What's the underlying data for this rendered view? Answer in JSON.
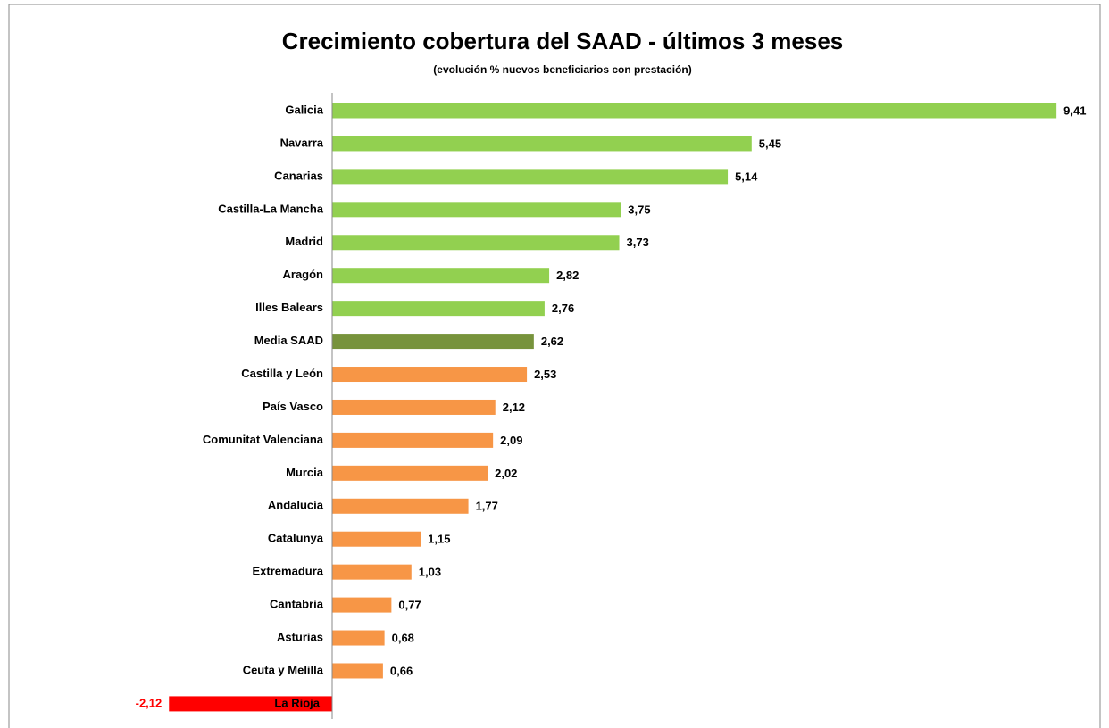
{
  "chart_data": {
    "type": "bar",
    "orientation": "horizontal",
    "title": "Crecimiento cobertura del SAAD - últimos 3 meses",
    "subtitle": "(evolución % nuevos beneficiarios con prestación)",
    "categories": [
      "Galicia",
      "Navarra",
      "Canarias",
      "Castilla-La Mancha",
      "Madrid",
      "Aragón",
      "Illes Balears",
      "Media SAAD",
      "Castilla y León",
      "País Vasco",
      "Comunitat Valenciana",
      "Murcia",
      "Andalucía",
      "Catalunya",
      "Extremadura",
      "Cantabria",
      "Asturias",
      "Ceuta y Melilla",
      "La Rioja"
    ],
    "values": [
      9.41,
      5.45,
      5.14,
      3.75,
      3.73,
      2.82,
      2.76,
      2.62,
      2.53,
      2.12,
      2.09,
      2.02,
      1.77,
      1.15,
      1.03,
      0.77,
      0.68,
      0.66,
      -2.12
    ],
    "value_labels": [
      "9,41",
      "5,45",
      "5,14",
      "3,75",
      "3,73",
      "2,82",
      "2,76",
      "2,62",
      "2,53",
      "2,12",
      "2,09",
      "2,02",
      "1,77",
      "1,15",
      "1,03",
      "0,77",
      "0,68",
      "0,66",
      "-2,12"
    ],
    "colors": [
      "#92d050",
      "#92d050",
      "#92d050",
      "#92d050",
      "#92d050",
      "#92d050",
      "#92d050",
      "#77933c",
      "#f79646",
      "#f79646",
      "#f79646",
      "#f79646",
      "#f79646",
      "#f79646",
      "#f79646",
      "#f79646",
      "#f79646",
      "#f79646",
      "#ff0000"
    ],
    "xlim": [
      -2.5,
      10
    ],
    "grid": false
  }
}
